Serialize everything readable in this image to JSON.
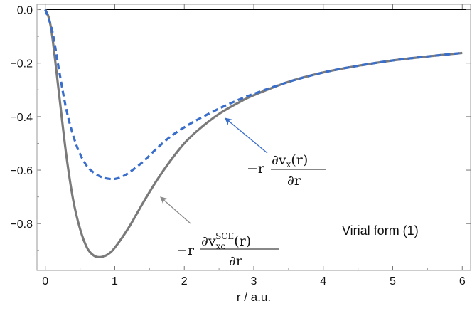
{
  "chart_data": {
    "type": "line",
    "title": "",
    "xlabel": "r / a.u.",
    "ylabel": "",
    "xlim": [
      -0.12,
      6.12
    ],
    "ylim": [
      -0.975,
      0.02
    ],
    "x_ticks": [
      0,
      1,
      2,
      3,
      4,
      5,
      6
    ],
    "x_tick_labels": [
      "0",
      "1",
      "2",
      "3",
      "4",
      "5",
      "6"
    ],
    "y_ticks": [
      0.0,
      -0.2,
      -0.4,
      -0.6,
      -0.8
    ],
    "y_tick_labels": [
      "0.0",
      "−0.2",
      "−0.4",
      "−0.6",
      "−0.8"
    ],
    "reference_line_y": 0,
    "series": [
      {
        "color": "#7a7a7a",
        "dash": "solid",
        "x": [
          0,
          0.05,
          0.1,
          0.2,
          0.3,
          0.4,
          0.5,
          0.6,
          0.7,
          0.8,
          0.9,
          1.0,
          1.2,
          1.4,
          1.6,
          1.8,
          2.0,
          2.2,
          2.5,
          2.8,
          3.0,
          3.5,
          4.0,
          4.5,
          5.0,
          5.5,
          6.0
        ],
        "y": [
          0,
          -0.03,
          -0.1,
          -0.32,
          -0.54,
          -0.71,
          -0.82,
          -0.89,
          -0.92,
          -0.925,
          -0.915,
          -0.89,
          -0.815,
          -0.725,
          -0.64,
          -0.565,
          -0.5,
          -0.45,
          -0.39,
          -0.345,
          -0.32,
          -0.27,
          -0.235,
          -0.21,
          -0.19,
          -0.175,
          -0.162
        ]
      },
      {
        "color": "#3a6ecb",
        "dash": "dashed",
        "x": [
          0,
          0.1,
          0.2,
          0.3,
          0.4,
          0.5,
          0.6,
          0.7,
          0.8,
          0.9,
          1.0,
          1.1,
          1.2,
          1.4,
          1.6,
          1.8,
          2.0,
          2.2,
          2.5,
          2.8,
          3.0,
          3.5,
          4.0,
          4.5,
          5.0,
          5.5,
          6.0
        ],
        "y": [
          0,
          -0.08,
          -0.23,
          -0.37,
          -0.47,
          -0.54,
          -0.585,
          -0.61,
          -0.625,
          -0.632,
          -0.633,
          -0.625,
          -0.61,
          -0.57,
          -0.52,
          -0.475,
          -0.44,
          -0.41,
          -0.37,
          -0.335,
          -0.315,
          -0.27,
          -0.235,
          -0.21,
          -0.19,
          -0.175,
          -0.162
        ]
      }
    ],
    "annotations": [
      {
        "text": "Virial form (1)"
      }
    ],
    "equation_labels": [
      {
        "prefix": "−r",
        "numerator": "∂v",
        "numerator_sub": "x",
        "numerator_tail": "(r)",
        "denominator": "∂r",
        "arrow_color": "#3a6ecb",
        "arrow_to": [
          2.55,
          -0.34
        ]
      },
      {
        "prefix": "−r",
        "numerator": "∂v",
        "numerator_sub": "xc",
        "numerator_sup": "SCE",
        "numerator_tail": "(r)",
        "denominator": "∂r",
        "arrow_color": "#8a8a8a",
        "arrow_to": [
          1.65,
          -0.705
        ]
      }
    ]
  }
}
